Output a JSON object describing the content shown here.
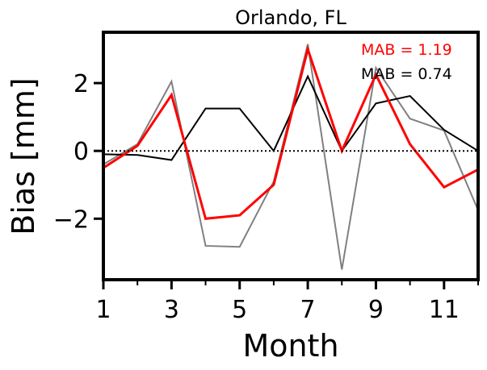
{
  "chart_data": {
    "type": "line",
    "title": "Orlando, FL",
    "xlabel": "Month",
    "ylabel": "Bias [mm]",
    "xlim": [
      1,
      12
    ],
    "ylim": [
      -3.8,
      3.5
    ],
    "xticks": [
      1,
      3,
      5,
      7,
      9,
      11
    ],
    "yticks": [
      -2,
      0,
      2
    ],
    "grid": false,
    "x": [
      1,
      2,
      3,
      4,
      5,
      6,
      7,
      8,
      9,
      10,
      11,
      12
    ],
    "series": [
      {
        "color": "#808080",
        "values": [
          -0.4,
          0.2,
          2.05,
          -2.8,
          -2.83,
          -0.9,
          3.15,
          -3.5,
          2.45,
          0.95,
          0.6,
          -1.75
        ]
      },
      {
        "color": "#000000",
        "values": [
          -0.1,
          -0.12,
          -0.27,
          1.25,
          1.25,
          0.0,
          2.2,
          0.0,
          1.4,
          1.62,
          0.62,
          0.0
        ]
      },
      {
        "color": "#ff0000",
        "values": [
          -0.5,
          0.15,
          1.65,
          -2.0,
          -1.9,
          -1.0,
          3.0,
          0.0,
          2.25,
          0.2,
          -1.07,
          -0.55
        ]
      }
    ],
    "reference_line": {
      "y": 0,
      "style": "dotted",
      "color": "#000000"
    },
    "annotations": [
      {
        "text": "MAB = 1.19",
        "color": "#ff0000"
      },
      {
        "text": "MAB = 0.74",
        "color": "#000000"
      }
    ]
  }
}
